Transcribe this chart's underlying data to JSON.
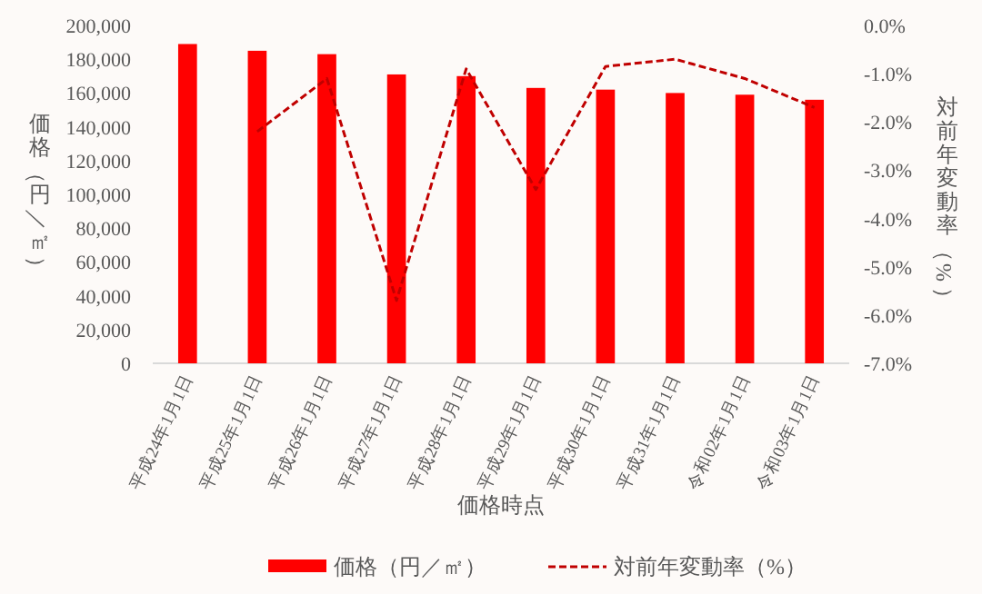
{
  "chart_data": {
    "type": "bar",
    "categories": [
      "平成24年1月1日",
      "平成25年1月1日",
      "平成26年1月1日",
      "平成27年1月1日",
      "平成28年1月1日",
      "平成29年1月1日",
      "平成30年1月1日",
      "平成31年1月1日",
      "令和02年1月1日",
      "令和03年1月1日"
    ],
    "xlabel": "価格時点",
    "ylabel": "価格（円／㎡）",
    "y2label": "対前年変動率（%）",
    "series": [
      {
        "name": "価格（円／㎡）",
        "color": "#ff0000",
        "values": [
          189000,
          185000,
          183000,
          171000,
          170000,
          163000,
          162000,
          160000,
          159000,
          156000
        ]
      },
      {
        "name": "対前年変動率（%）",
        "type": "line",
        "axis": "y2",
        "line_style": "dashed",
        "color": "#c00000",
        "values": [
          null,
          -2.2,
          -1.1,
          -5.7,
          -0.9,
          -3.4,
          -0.85,
          -0.7,
          -1.1,
          -1.7
        ]
      }
    ],
    "ylim": [
      0,
      200000
    ],
    "yticks": [
      {
        "value": 0,
        "label": "0"
      },
      {
        "value": 20000,
        "label": "20,000"
      },
      {
        "value": 40000,
        "label": "40,000"
      },
      {
        "value": 60000,
        "label": "60,000"
      },
      {
        "value": 80000,
        "label": "80,000"
      },
      {
        "value": 100000,
        "label": "100,000"
      },
      {
        "value": 120000,
        "label": "120,000"
      },
      {
        "value": 140000,
        "label": "140,000"
      },
      {
        "value": 160000,
        "label": "160,000"
      },
      {
        "value": 180000,
        "label": "180,000"
      },
      {
        "value": 200000,
        "label": "200,000"
      }
    ],
    "y2lim": [
      -7,
      0
    ],
    "y2ticks": [
      {
        "value": -7,
        "label": "-7.0%"
      },
      {
        "value": -6,
        "label": "-6.0%"
      },
      {
        "value": -5,
        "label": "-5.0%"
      },
      {
        "value": -4,
        "label": "-4.0%"
      },
      {
        "value": -3,
        "label": "-3.0%"
      },
      {
        "value": -2,
        "label": "-2.0%"
      },
      {
        "value": -1,
        "label": "-1.0%"
      },
      {
        "value": 0,
        "label": "0.0%"
      }
    ],
    "legend": "bottom"
  }
}
